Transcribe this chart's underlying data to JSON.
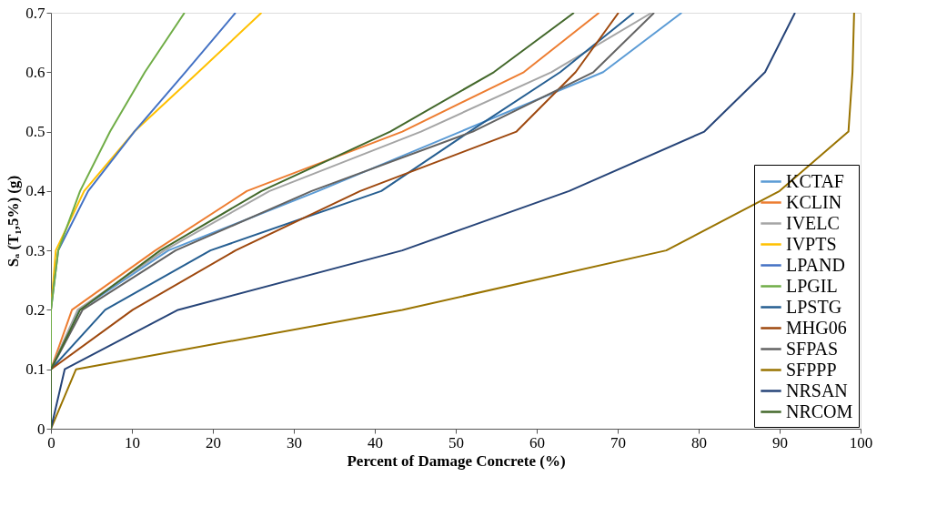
{
  "chart_data": {
    "type": "line",
    "xlabel": "Percent of Damage Concrete (%)",
    "ylabel": "Sₐ (T₁,5%) (g)",
    "xlim": [
      0,
      100
    ],
    "ylim": [
      0,
      0.7
    ],
    "xticks": [
      0,
      10,
      20,
      30,
      40,
      50,
      60,
      70,
      80,
      90,
      100
    ],
    "yticks": [
      0,
      0.1,
      0.2,
      0.3,
      0.4,
      0.5,
      0.6,
      0.7
    ],
    "grid": false,
    "legend": "bottom right",
    "marker": "none",
    "line_style": "solid",
    "series": [
      {
        "name": "KCTAF",
        "color": "#5b9bd5",
        "x": [
          0,
          0,
          3.5,
          14.5,
          33,
          50.6,
          68.2,
          77.9
        ],
        "values": [
          0,
          0.1,
          0.2,
          0.3,
          0.4,
          0.5,
          0.6,
          0.7
        ]
      },
      {
        "name": "KCLIN",
        "color": "#ed7d31",
        "x": [
          0,
          0,
          2.6,
          12.9,
          24.2,
          43.4,
          58.4,
          67.7
        ],
        "values": [
          0,
          0.1,
          0.2,
          0.3,
          0.4,
          0.5,
          0.6,
          0.7
        ]
      },
      {
        "name": "IVELC",
        "color": "#a5a5a5",
        "x": [
          0,
          0,
          3.3,
          14,
          27,
          45.7,
          61.8,
          74.2
        ],
        "values": [
          0,
          0.1,
          0.2,
          0.3,
          0.4,
          0.5,
          0.6,
          0.7
        ]
      },
      {
        "name": "IVPTS",
        "color": "#ffc000",
        "x": [
          0,
          0,
          0,
          0.6,
          4.1,
          10.3,
          18.2,
          26
        ],
        "values": [
          0,
          0.1,
          0.2,
          0.3,
          0.4,
          0.5,
          0.6,
          0.7
        ]
      },
      {
        "name": "LPAND",
        "color": "#4472c4",
        "x": [
          0,
          0,
          0,
          0.9,
          4.6,
          10.3,
          16.6,
          22.8
        ],
        "values": [
          0,
          0.1,
          0.2,
          0.3,
          0.4,
          0.5,
          0.6,
          0.7
        ]
      },
      {
        "name": "LPGIL",
        "color": "#70ad47",
        "x": [
          0,
          0,
          0,
          0.9,
          3.6,
          7.3,
          11.6,
          16.5
        ],
        "values": [
          0,
          0.1,
          0.2,
          0.3,
          0.4,
          0.5,
          0.6,
          0.7
        ]
      },
      {
        "name": "LPSTG",
        "color": "#255e91",
        "x": [
          0,
          0,
          6.7,
          19.7,
          40.8,
          51.7,
          62.9,
          72
        ],
        "values": [
          0,
          0.1,
          0.2,
          0.3,
          0.4,
          0.5,
          0.6,
          0.7
        ]
      },
      {
        "name": "MHG06",
        "color": "#9e480e",
        "x": [
          0,
          0,
          10.1,
          22.8,
          38.2,
          57.5,
          64.8,
          70.1
        ],
        "values": [
          0,
          0.1,
          0.2,
          0.3,
          0.4,
          0.5,
          0.6,
          0.7
        ]
      },
      {
        "name": "SFPAS",
        "color": "#636363",
        "x": [
          0,
          0,
          3.9,
          15.4,
          32.2,
          52.1,
          67,
          74.5
        ],
        "values": [
          0,
          0.1,
          0.2,
          0.3,
          0.4,
          0.5,
          0.6,
          0.7
        ]
      },
      {
        "name": "SFPPP",
        "color": "#997300",
        "x": [
          0,
          3.1,
          43.4,
          76,
          90,
          98.5,
          99,
          99.2
        ],
        "values": [
          0,
          0.1,
          0.2,
          0.3,
          0.4,
          0.5,
          0.6,
          0.7
        ]
      },
      {
        "name": "NRSAN",
        "color": "#264478",
        "x": [
          0,
          1.7,
          15.7,
          43.4,
          64,
          80.7,
          88.2,
          91.9
        ],
        "values": [
          0,
          0.1,
          0.2,
          0.3,
          0.4,
          0.5,
          0.6,
          0.7
        ]
      },
      {
        "name": "NRCOM",
        "color": "#43682b",
        "x": [
          0,
          0,
          3.6,
          13.5,
          26,
          41.9,
          54.7,
          64.6
        ],
        "values": [
          0,
          0.1,
          0.2,
          0.3,
          0.4,
          0.5,
          0.6,
          0.7
        ]
      }
    ]
  }
}
